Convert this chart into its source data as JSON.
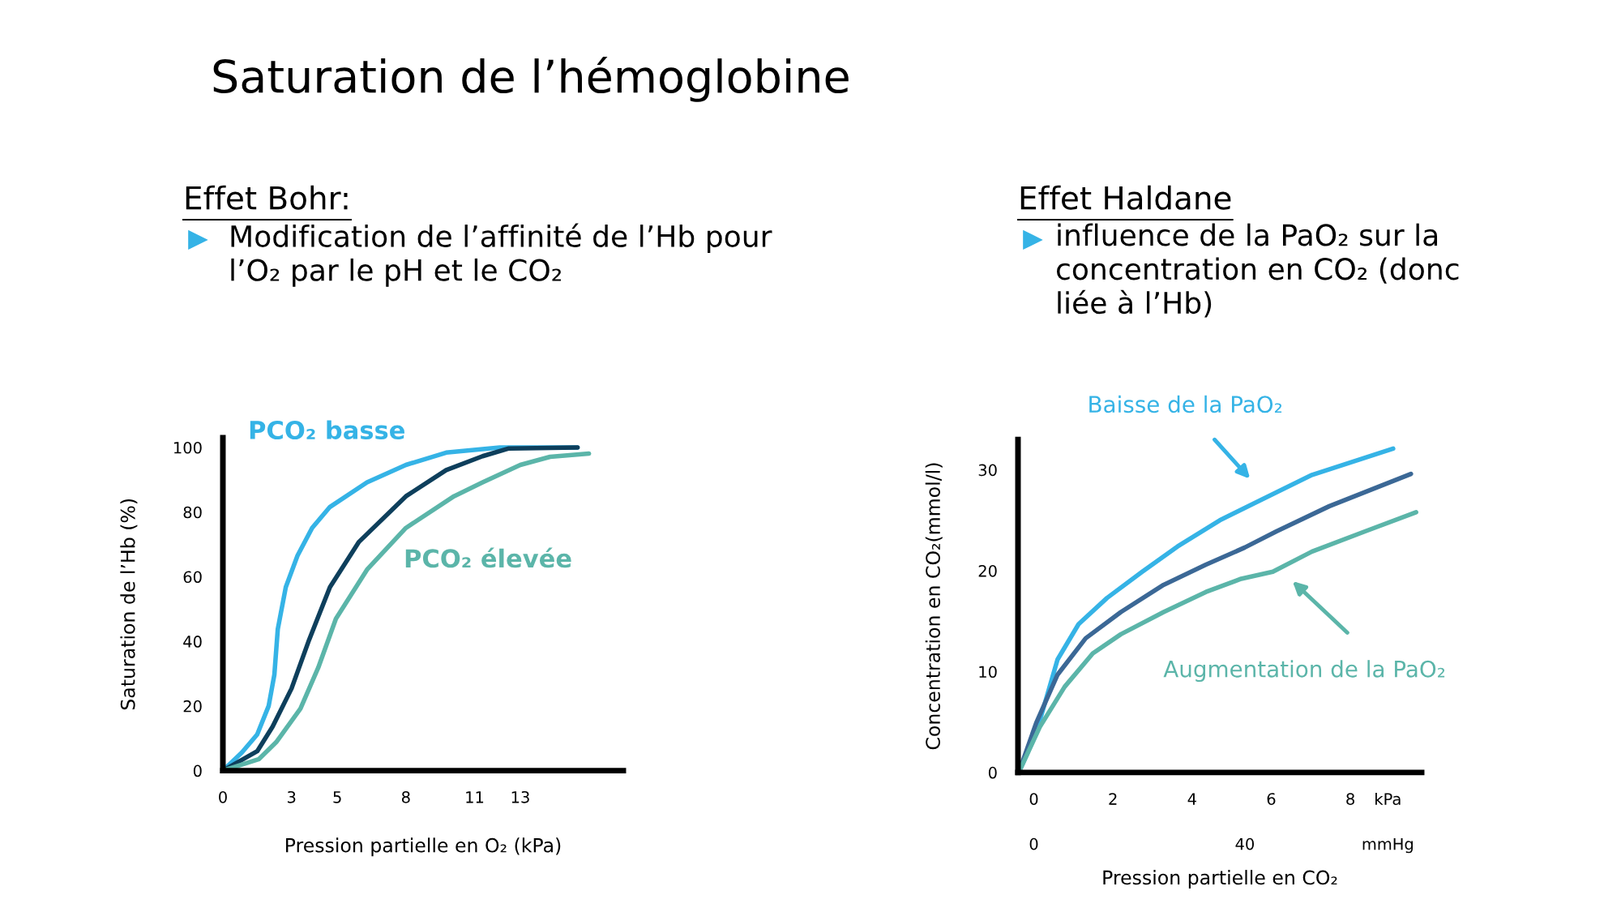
{
  "chart_data": [
    {
      "type": "other",
      "title": "Saturation de l’hémoglobine"
    },
    {
      "type": "line",
      "title": "Effet Bohr:",
      "subtitle": "Modification de l’affinité de l’Hb pour\nl’O₂ par le pH et le CO₂",
      "xlabel": "Pression partielle en O₂ (kPa)",
      "ylabel": "Saturation de l’Hb (%)",
      "xlim": [
        0,
        17.5
      ],
      "xticks": [
        0,
        3,
        5,
        8,
        11,
        13
      ],
      "ylim": [
        0,
        103
      ],
      "yticks": [
        0,
        20,
        40,
        60,
        80,
        100
      ],
      "grid": false,
      "legend": false,
      "series": [
        {
          "name": "PCO₂ basse",
          "color": "#35b3e6",
          "x": [
            0,
            0.83,
            1.5,
            2.0,
            2.25,
            2.4,
            2.75,
            3.26,
            3.9,
            4.68,
            6.3,
            8,
            9.76,
            12.1,
            15.5
          ],
          "values": [
            0,
            5.6,
            11.2,
            20,
            29.7,
            43.8,
            56.8,
            66.5,
            75.1,
            81.6,
            89.2,
            94.6,
            98.4,
            100,
            100
          ]
        },
        {
          "color": "#0e3f5c",
          "x": [
            0,
            1.5,
            2.17,
            3,
            3.77,
            4.68,
            5.95,
            8,
            9.76,
            11.35,
            12.5,
            15.5
          ],
          "values": [
            0,
            6,
            13.6,
            25.4,
            40.5,
            56.8,
            70.8,
            84.9,
            93,
            97.3,
            99.7,
            100
          ]
        },
        {
          "name": "PCO₂ élevée",
          "color": "#5bb5a9",
          "x": [
            0,
            1.58,
            2.33,
            3.39,
            4.17,
            4.94,
            6.3,
            8,
            10.1,
            11.35,
            13,
            14.3,
            16
          ],
          "values": [
            0,
            3.6,
            8.8,
            19.2,
            31.9,
            47,
            62.2,
            75.1,
            84.9,
            89.2,
            94.6,
            97.1,
            98.1
          ]
        }
      ]
    },
    {
      "type": "line",
      "title": "Effet Haldane",
      "subtitle": "influence de la PaO₂ sur la\nconcentration en CO₂ (donc\nliée à l’Hb)",
      "xlabel": "Pression partielle en CO₂",
      "ylabel": "Concentration en CO₂(mmol/l)",
      "xlim": [
        -0.4,
        9.8
      ],
      "xticks": [
        0,
        2,
        4,
        6,
        8
      ],
      "x2lim": [
        -3,
        73.5
      ],
      "x2ticks": [
        0,
        40
      ],
      "ylim": [
        0,
        33
      ],
      "yticks": [
        0,
        10,
        20,
        30
      ],
      "grid": false,
      "legend": false,
      "annotations": [
        "kPa",
        "mmHg",
        "Baisse de la PaO₂",
        "Augmentation de la PaO₂"
      ],
      "series": [
        {
          "color": "#35b3e6",
          "x": [
            -0.38,
            0.06,
            0.6,
            1.13,
            1.85,
            2.74,
            3.63,
            4.7,
            5.78,
            7.03,
            9.08
          ],
          "values": [
            0,
            3.9,
            11.2,
            14.7,
            17.3,
            19.9,
            22.4,
            25,
            27.1,
            29.5,
            32.1
          ]
        },
        {
          "color": "#3b6896",
          "x": [
            -0.38,
            0.06,
            0.6,
            1.31,
            2.2,
            3.28,
            4.35,
            5.33,
            6.13,
            7.47,
            9.53
          ],
          "values": [
            0,
            4.9,
            9.7,
            13.3,
            15.9,
            18.6,
            20.6,
            22.3,
            23.9,
            26.4,
            29.6
          ]
        },
        {
          "color": "#5bb5a9",
          "x": [
            -0.38,
            0.15,
            0.78,
            1.49,
            2.2,
            3.28,
            4.35,
            5.24,
            6.04,
            7.03,
            8.37,
            9.66
          ],
          "values": [
            0,
            4.5,
            8.5,
            11.8,
            13.7,
            15.9,
            17.9,
            19.2,
            19.9,
            21.9,
            23.9,
            25.8
          ]
        }
      ]
    }
  ]
}
